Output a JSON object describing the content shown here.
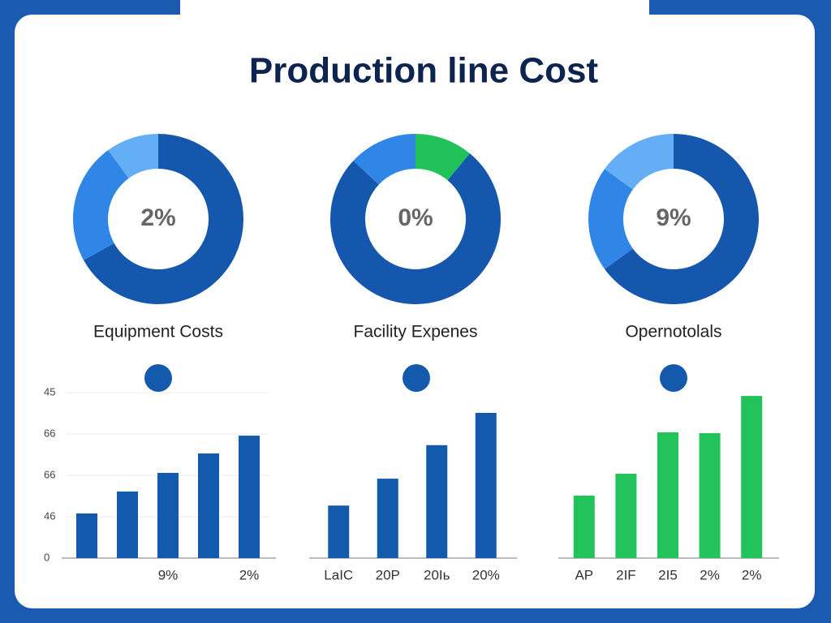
{
  "title": "Production line Cost",
  "chart_data": [
    {
      "type": "pie",
      "label": "Equipment Costs",
      "center_label": "2%",
      "categories": [
        null,
        null,
        null
      ],
      "values": [
        67,
        23,
        10
      ],
      "colors": [
        "#1457ad",
        "#2f86e6",
        "#64aef5"
      ]
    },
    {
      "type": "pie",
      "label": "Facility Expenes",
      "center_label": "0%",
      "categories": [
        null,
        null,
        null
      ],
      "values": [
        11,
        76,
        13
      ],
      "colors": [
        "#22c25a",
        "#1457ad",
        "#2f86e6"
      ]
    },
    {
      "type": "pie",
      "label": "Opernotolals",
      "center_label": "9%",
      "categories": [
        null,
        null,
        null
      ],
      "values": [
        65,
        20,
        15
      ],
      "colors": [
        "#1457ad",
        "#2f86e6",
        "#64aef5"
      ]
    },
    {
      "type": "bar",
      "categories": [
        null,
        null,
        "9%",
        null,
        "2%"
      ],
      "values": [
        1.08,
        1.61,
        2.06,
        2.53,
        2.96
      ],
      "color": "#135aad",
      "ylim": [
        0,
        4
      ],
      "yticks": [
        0,
        {
          "value": 1,
          "label": "46"
        },
        {
          "value": 2,
          "label": "66"
        },
        {
          "value": 3,
          "label": "66"
        },
        {
          "value": 4,
          "label": "45"
        }
      ],
      "grid": true
    },
    {
      "type": "bar",
      "categories": [
        "LaIC",
        "20P",
        "20Iь",
        "20%"
      ],
      "values": [
        1.27,
        1.92,
        2.73,
        3.51
      ],
      "color": "#135aad",
      "ylim": [
        0,
        4
      ]
    },
    {
      "type": "bar",
      "categories": [
        "AP",
        "2IF",
        "2I5",
        "2%",
        "2%"
      ],
      "values": [
        1.51,
        2.04,
        3.04,
        3.02,
        3.92
      ],
      "color": "#22c35b",
      "ylim": [
        0,
        4
      ]
    }
  ]
}
